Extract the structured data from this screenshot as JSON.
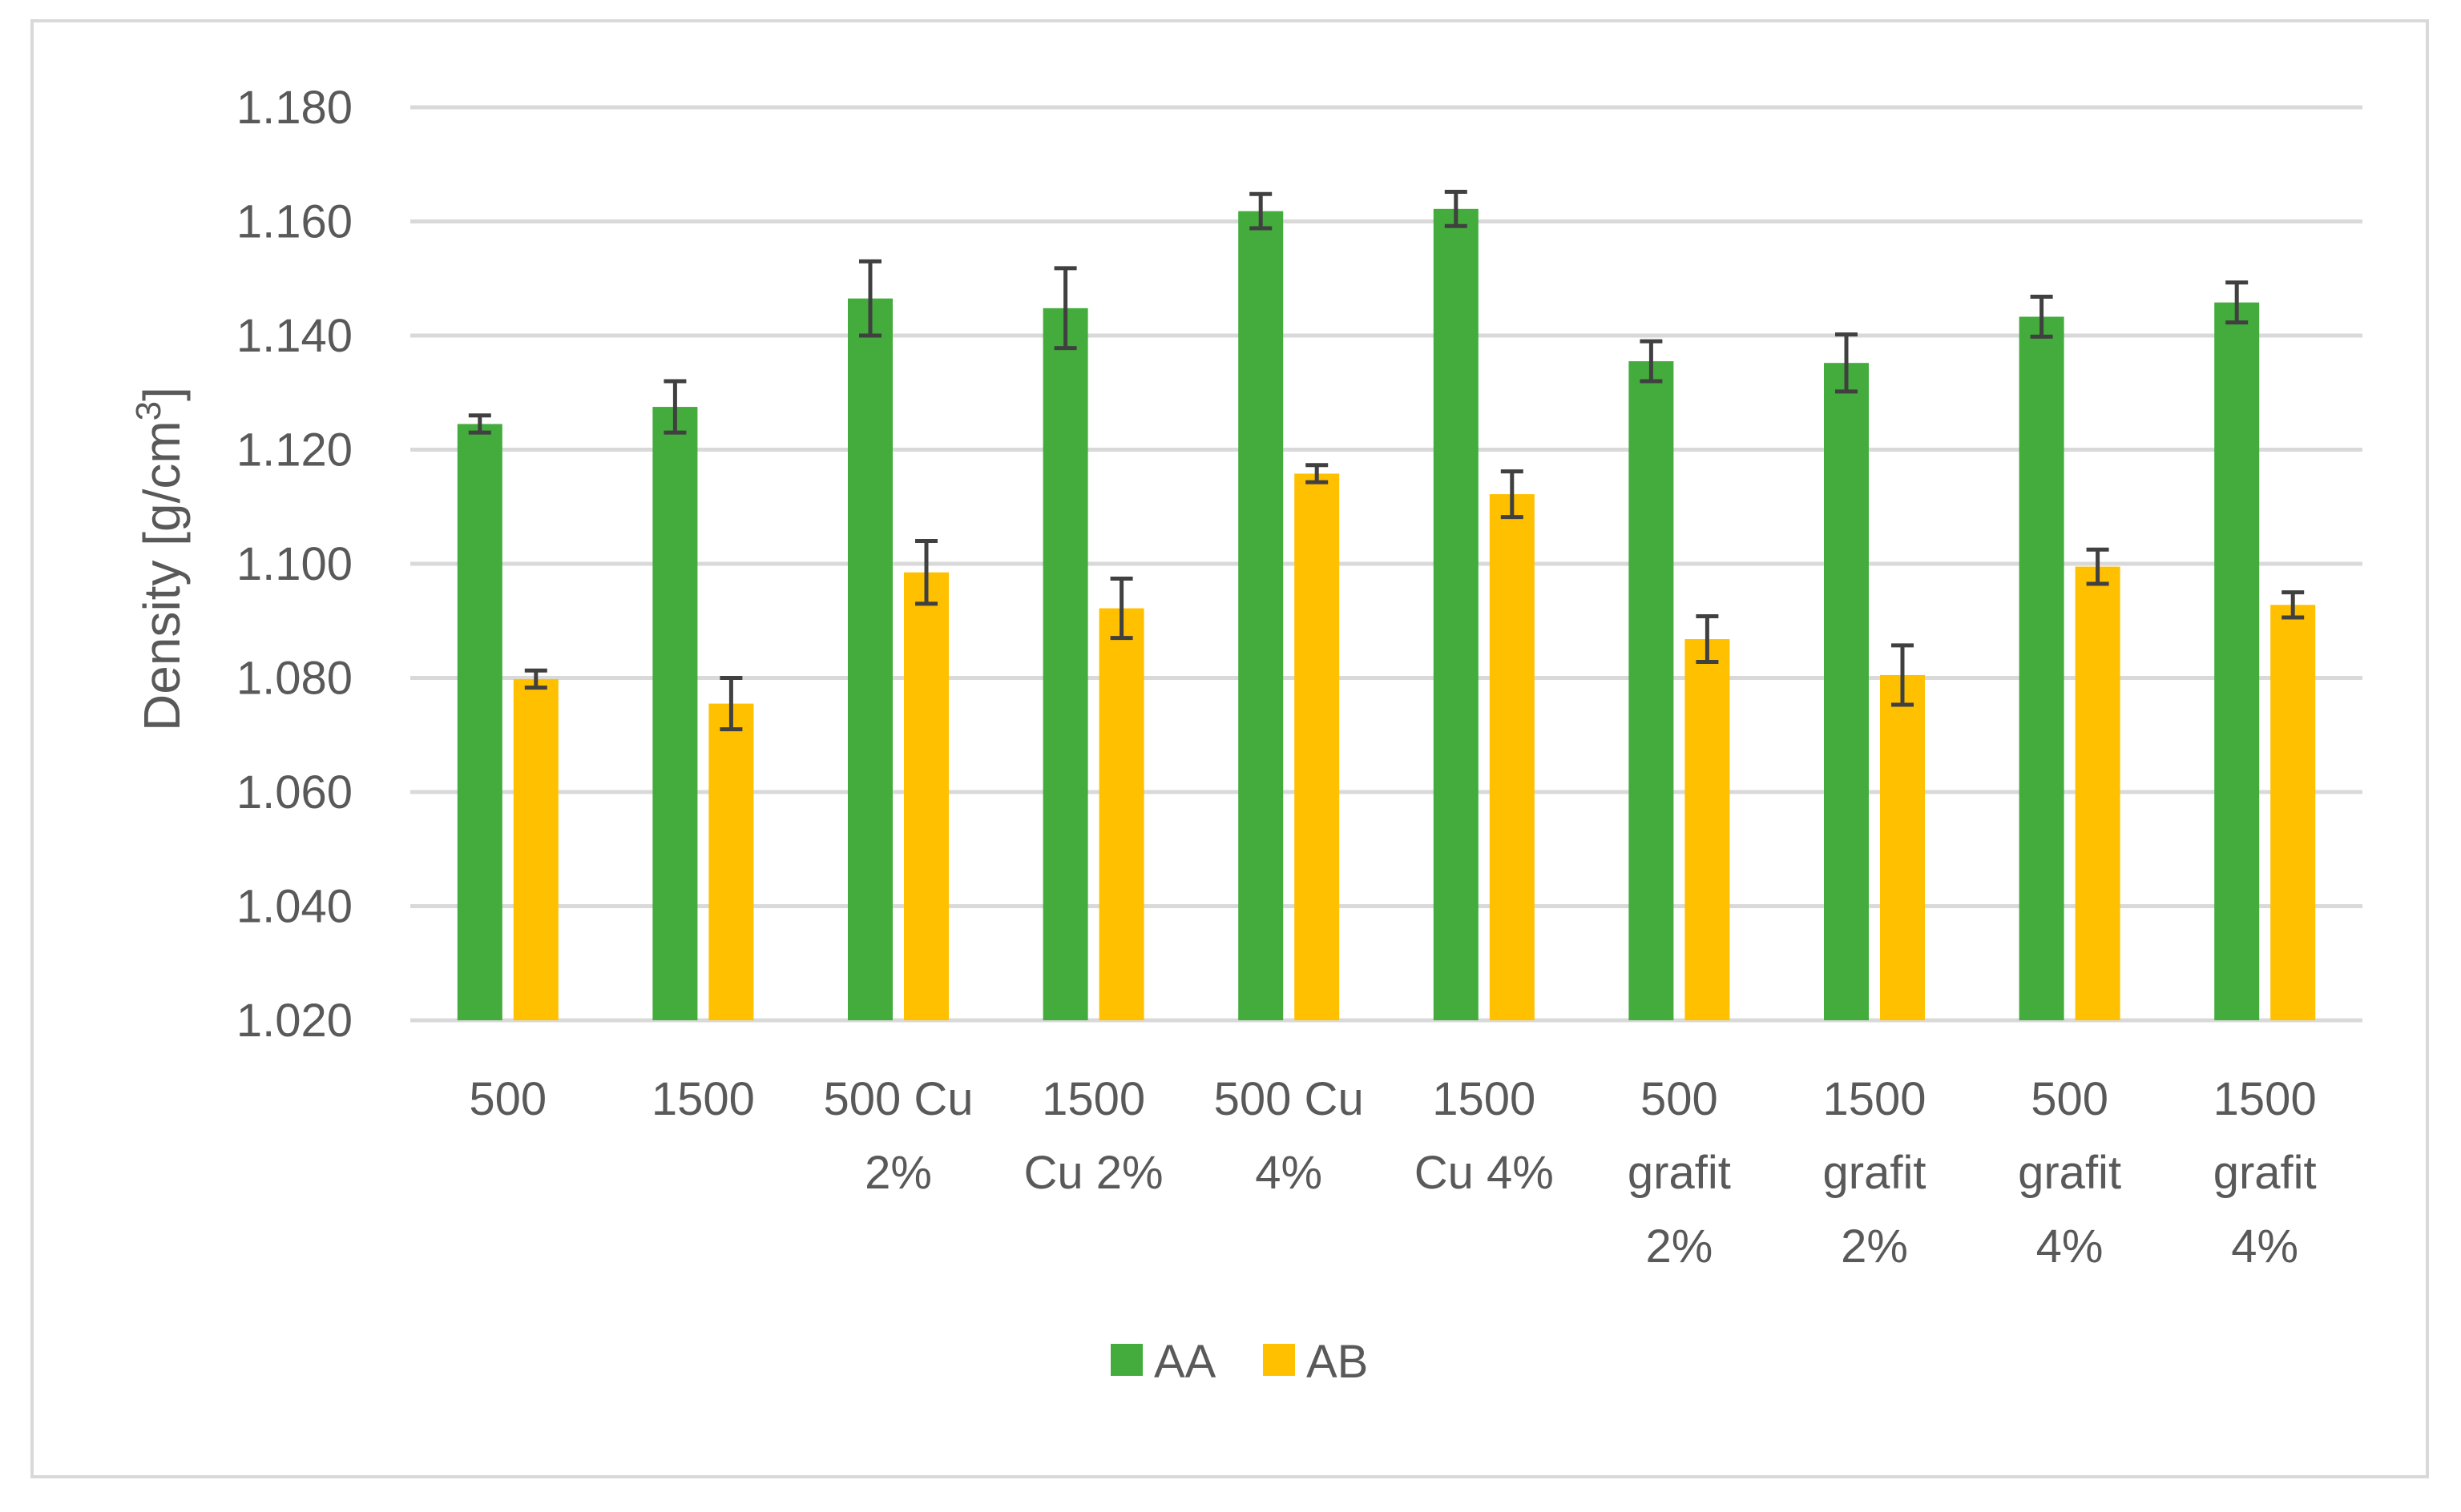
{
  "chart_data": {
    "type": "bar",
    "title": "",
    "xlabel": "",
    "ylabel": "Density [g/cm",
    "ylabel_superscript": "3",
    "ylabel_close": "]",
    "ylim": [
      1.02,
      1.18
    ],
    "yticks": [
      1.02,
      1.04,
      1.06,
      1.08,
      1.1,
      1.12,
      1.14,
      1.16,
      1.18
    ],
    "ytick_labels": [
      "1.020",
      "1.040",
      "1.060",
      "1.080",
      "1.100",
      "1.120",
      "1.140",
      "1.160",
      "1.180"
    ],
    "grid": true,
    "legend_position": "bottom",
    "categories": [
      [
        "500"
      ],
      [
        "1500"
      ],
      [
        "500 Cu",
        "2%"
      ],
      [
        "1500",
        "Cu 2%"
      ],
      [
        "500 Cu",
        "4%"
      ],
      [
        "1500",
        "Cu 4%"
      ],
      [
        "500",
        "grafit",
        "2%"
      ],
      [
        "1500",
        "grafit",
        "2%"
      ],
      [
        "500",
        "grafit",
        "4%"
      ],
      [
        "1500",
        "grafit",
        "4%"
      ]
    ],
    "series": [
      {
        "name": "AA",
        "color": "#43ac3c",
        "values": [
          1.1245,
          1.1275,
          1.1465,
          1.1448,
          1.1618,
          1.1622,
          1.1355,
          1.1352,
          1.1433,
          1.1458
        ],
        "errors": [
          0.0015,
          0.0045,
          0.0065,
          0.007,
          0.003,
          0.003,
          0.0035,
          0.005,
          0.0035,
          0.0035
        ]
      },
      {
        "name": "AB",
        "color": "#ffc000",
        "values": [
          1.0798,
          1.0755,
          1.0985,
          1.0922,
          1.1158,
          1.1122,
          1.0868,
          1.0805,
          1.0995,
          1.0928
        ],
        "errors": [
          0.0015,
          0.0045,
          0.0055,
          0.0052,
          0.0015,
          0.004,
          0.004,
          0.0052,
          0.003,
          0.0022
        ]
      }
    ],
    "error_bar_color": "#404040"
  }
}
